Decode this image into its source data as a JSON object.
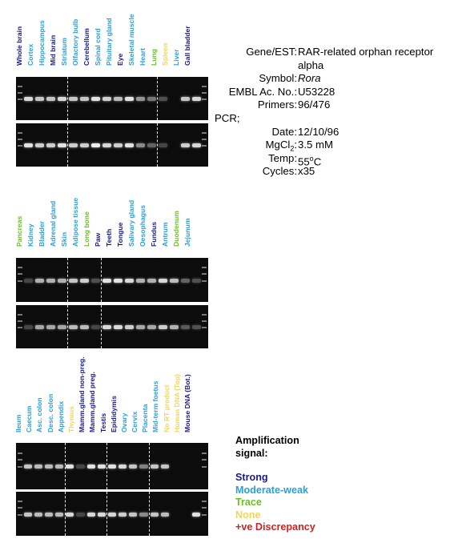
{
  "info": {
    "rows": [
      {
        "k": "Gene/EST:",
        "v": "RAR-related orphan receptor"
      },
      {
        "k": "",
        "v": "alpha"
      },
      {
        "k": "Symbol:",
        "v": "Rora",
        "italic": true
      },
      {
        "k": "EMBL Ac. No.:",
        "v": "U53228"
      },
      {
        "k": "Primers:",
        "v": "96/476"
      },
      {
        "k": "PCR;",
        "v": "",
        "left": true
      },
      {
        "k": "Date:",
        "v": "12/10/96"
      },
      {
        "k": "MgCl2:",
        "v": "3.5 mM"
      },
      {
        "k": "Temp:",
        "v": "55oC"
      },
      {
        "k": "Cycles:",
        "v": "x35"
      }
    ]
  },
  "legend": {
    "title_line1": "Amplification",
    "title_line2": "signal:",
    "items": [
      {
        "label": "Strong",
        "color": "#1a1a8c"
      },
      {
        "label": "Moderate-weak",
        "color": "#2a9fd8"
      },
      {
        "label": "Trace",
        "color": "#6cc024"
      },
      {
        "label": "None",
        "color": "#f2d65a"
      },
      {
        "label": "+ve Discrepancy",
        "color": "#d81e1e"
      }
    ]
  },
  "colors": {
    "strong": "#1a1a8c",
    "moderate": "#2a9fd8",
    "trace": "#6cc024",
    "none": "#f2d65a",
    "discrepancy": "#d81e1e"
  },
  "panels": [
    {
      "lanes": [
        {
          "label": "Whole brain",
          "cat": "strong",
          "a": 0.8,
          "b": 0.85
        },
        {
          "label": "Cortex",
          "cat": "moderate",
          "a": 0.7,
          "b": 0.75
        },
        {
          "label": "Hippocampus",
          "cat": "moderate",
          "a": 0.7,
          "b": 0.75
        },
        {
          "label": "Mid brain",
          "cat": "strong",
          "a": 0.8,
          "b": 0.85
        },
        {
          "label": "Striatum",
          "cat": "moderate",
          "a": 0.7,
          "b": 0.75
        },
        {
          "label": "Olfactory bulb",
          "cat": "moderate",
          "a": 0.7,
          "b": 0.75
        },
        {
          "label": "Cerebellum",
          "cat": "strong",
          "a": 0.85,
          "b": 0.9
        },
        {
          "label": "Spinal cord",
          "cat": "moderate",
          "a": 0.75,
          "b": 0.8
        },
        {
          "label": "Pituitary gland",
          "cat": "moderate",
          "a": 0.65,
          "b": 0.75
        },
        {
          "label": "Eye",
          "cat": "strong",
          "a": 0.85,
          "b": 0.85
        },
        {
          "label": "Skeletal muscle",
          "cat": "moderate",
          "a": 0.45,
          "b": 0.4
        },
        {
          "label": "Heart",
          "cat": "moderate",
          "a": 0.3,
          "b": 0.2
        },
        {
          "label": "Lung",
          "cat": "trace",
          "a": 0.1,
          "b": 0.05
        },
        {
          "label": "Spleen",
          "cat": "none",
          "a": 0.0,
          "b": 0.0
        },
        {
          "label": "Liver",
          "cat": "moderate",
          "a": 0.7,
          "b": 0.75
        },
        {
          "label": "Gall bladder",
          "cat": "strong",
          "a": 0.8,
          "b": 0.8
        }
      ],
      "separators": [
        4,
        12
      ]
    },
    {
      "lanes": [
        {
          "label": "Pancreas",
          "cat": "trace",
          "a": 0.05,
          "b": 0.05
        },
        {
          "label": "Kidney",
          "cat": "moderate",
          "a": 0.6,
          "b": 0.55
        },
        {
          "label": "Bladder",
          "cat": "moderate",
          "a": 0.6,
          "b": 0.55
        },
        {
          "label": "Adrenal gland",
          "cat": "moderate",
          "a": 0.6,
          "b": 0.55
        },
        {
          "label": "Skin",
          "cat": "moderate",
          "a": 0.7,
          "b": 0.65
        },
        {
          "label": "Adipose tissue",
          "cat": "moderate",
          "a": 0.75,
          "b": 0.65
        },
        {
          "label": "Long bone",
          "cat": "trace",
          "a": 0.1,
          "b": 0.05
        },
        {
          "label": "Paw",
          "cat": "strong",
          "a": 0.85,
          "b": 0.8
        },
        {
          "label": "Teeth",
          "cat": "strong",
          "a": 0.85,
          "b": 0.8
        },
        {
          "label": "Tongue",
          "cat": "strong",
          "a": 0.8,
          "b": 0.75
        },
        {
          "label": "Salivary gland",
          "cat": "moderate",
          "a": 0.6,
          "b": 0.55
        },
        {
          "label": "Oesophagus",
          "cat": "moderate",
          "a": 0.6,
          "b": 0.55
        },
        {
          "label": "Fundus",
          "cat": "strong",
          "a": 0.8,
          "b": 0.75
        },
        {
          "label": "Antrum",
          "cat": "moderate",
          "a": 0.65,
          "b": 0.6
        },
        {
          "label": "Duodenum",
          "cat": "trace",
          "a": 0.2,
          "b": 0.15
        },
        {
          "label": "Jejunum",
          "cat": "moderate",
          "a": 0.1,
          "b": 0.1
        }
      ],
      "separators": [
        4,
        7
      ]
    },
    {
      "lanes": [
        {
          "label": "Ileum",
          "cat": "moderate",
          "a": 0.7,
          "b": 0.7
        },
        {
          "label": "Caecum",
          "cat": "moderate",
          "a": 0.65,
          "b": 0.65
        },
        {
          "label": "Asc. colon",
          "cat": "moderate",
          "a": 0.65,
          "b": 0.65
        },
        {
          "label": "Desc. colon",
          "cat": "moderate",
          "a": 0.65,
          "b": 0.65
        },
        {
          "label": "Appendix",
          "cat": "moderate",
          "a": 0.85,
          "b": 0.8
        },
        {
          "label": "Thymus",
          "cat": "none",
          "a": 0.05,
          "b": 0.05
        },
        {
          "label": "Mamm.gland non-preg.",
          "cat": "strong",
          "a": 0.85,
          "b": 0.8
        },
        {
          "label": "Mamm.gland preg.",
          "cat": "strong",
          "a": 0.85,
          "b": 0.8
        },
        {
          "label": "Testis",
          "cat": "strong",
          "a": 0.85,
          "b": 0.8
        },
        {
          "label": "Epididymis",
          "cat": "strong",
          "a": 0.8,
          "b": 0.75
        },
        {
          "label": "Ovary",
          "cat": "moderate",
          "a": 0.7,
          "b": 0.7
        },
        {
          "label": "Cervix",
          "cat": "moderate",
          "a": 0.35,
          "b": 0.4
        },
        {
          "label": "Placenta",
          "cat": "moderate",
          "a": 0.7,
          "b": 0.7
        },
        {
          "label": "Mid-term foetus",
          "cat": "moderate",
          "a": 0.7,
          "b": 0.65
        },
        {
          "label": "No RT product",
          "cat": "none",
          "a": 0.0,
          "b": 0.0
        },
        {
          "label": "Human DNA (Top)",
          "cat": "none",
          "a": 0.0,
          "b": 0.0
        },
        {
          "label": "Mouse DNA (Bot.)",
          "cat": "strong",
          "a": 0.0,
          "b": 0.85
        }
      ],
      "separators": [
        4,
        8,
        12
      ]
    }
  ]
}
